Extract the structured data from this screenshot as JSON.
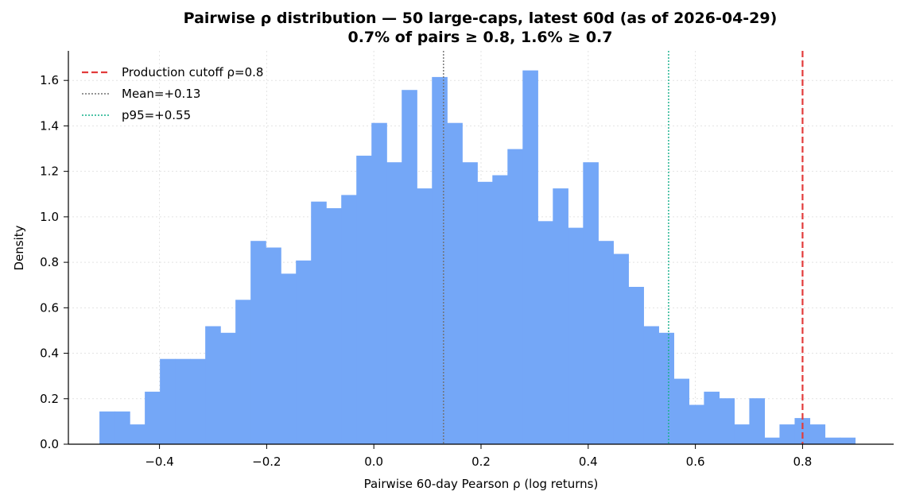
{
  "chart_data": {
    "type": "bar",
    "title": "Pairwise ρ distribution — 50 large-caps, latest 60d (as of 2026-04-29)",
    "subtitle": "0.7% of pairs ≥ 0.8, 1.6% ≥ 0.7",
    "xlabel": "Pairwise 60-day Pearson ρ (log returns)",
    "ylabel": "Density",
    "xlim": [
      -0.57,
      0.97
    ],
    "ylim": [
      0,
      1.73
    ],
    "xticks": [
      -0.4,
      -0.2,
      0.0,
      0.2,
      0.4,
      0.6,
      0.8
    ],
    "xtick_labels": [
      "−0.4",
      "−0.2",
      "0.0",
      "0.2",
      "0.4",
      "0.6",
      "0.8"
    ],
    "yticks": [
      0.0,
      0.2,
      0.4,
      0.6,
      0.8,
      1.0,
      1.2,
      1.4,
      1.6
    ],
    "ytick_labels": [
      "0.0",
      "0.2",
      "0.4",
      "0.6",
      "0.8",
      "1.0",
      "1.2",
      "1.4",
      "1.6"
    ],
    "grid": true,
    "legend_position": "top-left",
    "bar_color": "#74a7f7",
    "bin_start": -0.512,
    "bin_width": 0.0282,
    "values": [
      0.144,
      0.144,
      0.087,
      0.231,
      0.375,
      0.375,
      0.375,
      0.519,
      0.49,
      0.635,
      0.894,
      0.865,
      0.75,
      0.808,
      1.067,
      1.038,
      1.096,
      1.269,
      1.413,
      1.24,
      1.558,
      1.125,
      1.615,
      1.413,
      1.24,
      1.154,
      1.183,
      1.298,
      1.644,
      0.981,
      1.125,
      0.952,
      1.24,
      0.894,
      0.837,
      0.692,
      0.519,
      0.49,
      0.288,
      0.173,
      0.231,
      0.202,
      0.087,
      0.202,
      0.029,
      0.087,
      0.115,
      0.087,
      0.029,
      0.029
    ],
    "reference_lines": [
      {
        "label": "Production cutoff ρ=0.8",
        "x": 0.8,
        "color": "#e23b3b",
        "style": "dashed"
      },
      {
        "label": "Mean=+0.13",
        "x": 0.13,
        "color": "#707070",
        "style": "dotted"
      },
      {
        "label": "p95=+0.55",
        "x": 0.55,
        "color": "#14b08a",
        "style": "dotted"
      }
    ]
  }
}
